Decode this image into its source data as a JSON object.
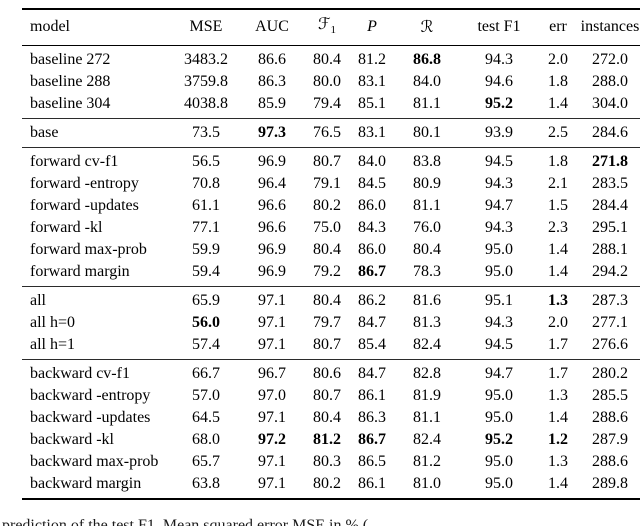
{
  "document": {
    "kind": "paper results table",
    "background_color": "#ffffff",
    "text_color": "#000000",
    "rule_color": "#000000"
  },
  "table": {
    "columns": [
      {
        "id": "model",
        "label": "model"
      },
      {
        "id": "mse",
        "label": "MSE"
      },
      {
        "id": "auc",
        "label": "AUC"
      },
      {
        "id": "f1",
        "label": "F1",
        "math": "cal",
        "base": "ℱ",
        "sub": "1"
      },
      {
        "id": "precision",
        "label": "P",
        "math": "it",
        "base": "P"
      },
      {
        "id": "recall",
        "label": "R",
        "math": "cal",
        "base": "ℛ"
      },
      {
        "id": "test-f1",
        "label": "test F1"
      },
      {
        "id": "err",
        "label": "err"
      },
      {
        "id": "instances",
        "label": "instances"
      }
    ],
    "groups": [
      {
        "name": "baselines",
        "rows": [
          {
            "model": "baseline 272",
            "values": [
              "3483.2",
              "86.6",
              "80.4",
              "81.2",
              "86.8",
              "94.3",
              "2.0",
              "272.0"
            ],
            "bold": [
              4
            ]
          },
          {
            "model": "baseline 288",
            "values": [
              "3759.8",
              "86.3",
              "80.0",
              "83.1",
              "84.0",
              "94.6",
              "1.8",
              "288.0"
            ],
            "bold": []
          },
          {
            "model": "baseline 304",
            "values": [
              "4038.8",
              "85.9",
              "79.4",
              "85.1",
              "81.1",
              "95.2",
              "1.4",
              "304.0"
            ],
            "bold": [
              5
            ]
          }
        ]
      },
      {
        "name": "base",
        "rows": [
          {
            "model": "base",
            "values": [
              "73.5",
              "97.3",
              "76.5",
              "83.1",
              "80.1",
              "93.9",
              "2.5",
              "284.6"
            ],
            "bold": [
              1
            ]
          }
        ]
      },
      {
        "name": "forward",
        "rows": [
          {
            "model": "forward cv-f1",
            "values": [
              "56.5",
              "96.9",
              "80.7",
              "84.0",
              "83.8",
              "94.5",
              "1.8",
              "271.8"
            ],
            "bold": [
              7
            ]
          },
          {
            "model": "forward -entropy",
            "values": [
              "70.8",
              "96.4",
              "79.1",
              "84.5",
              "80.9",
              "94.3",
              "2.1",
              "283.5"
            ],
            "bold": []
          },
          {
            "model": "forward -updates",
            "values": [
              "61.1",
              "96.6",
              "80.2",
              "86.0",
              "81.1",
              "94.7",
              "1.5",
              "284.4"
            ],
            "bold": []
          },
          {
            "model": "forward -kl",
            "values": [
              "77.1",
              "96.6",
              "75.0",
              "84.3",
              "76.0",
              "94.3",
              "2.3",
              "295.1"
            ],
            "bold": []
          },
          {
            "model": "forward max-prob",
            "values": [
              "59.9",
              "96.9",
              "80.4",
              "86.0",
              "80.4",
              "95.0",
              "1.4",
              "288.1"
            ],
            "bold": []
          },
          {
            "model": "forward margin",
            "values": [
              "59.4",
              "96.9",
              "79.2",
              "86.7",
              "78.3",
              "95.0",
              "1.4",
              "294.2"
            ],
            "bold": [
              3
            ]
          }
        ]
      },
      {
        "name": "all",
        "rows": [
          {
            "model": "all",
            "values": [
              "65.9",
              "97.1",
              "80.4",
              "86.2",
              "81.6",
              "95.1",
              "1.3",
              "287.3"
            ],
            "bold": [
              6
            ]
          },
          {
            "model": "all h=0",
            "values": [
              "56.0",
              "97.1",
              "79.7",
              "84.7",
              "81.3",
              "94.3",
              "2.0",
              "277.1"
            ],
            "bold": [
              0
            ]
          },
          {
            "model": "all h=1",
            "values": [
              "57.4",
              "97.1",
              "80.7",
              "85.4",
              "82.4",
              "94.5",
              "1.7",
              "276.6"
            ],
            "bold": []
          }
        ]
      },
      {
        "name": "backward",
        "rows": [
          {
            "model": "backward cv-f1",
            "values": [
              "66.7",
              "96.7",
              "80.6",
              "84.7",
              "82.8",
              "94.7",
              "1.7",
              "280.2"
            ],
            "bold": []
          },
          {
            "model": "backward -entropy",
            "values": [
              "57.0",
              "97.0",
              "80.7",
              "86.1",
              "81.9",
              "95.0",
              "1.3",
              "285.5"
            ],
            "bold": []
          },
          {
            "model": "backward -updates",
            "values": [
              "64.5",
              "97.1",
              "80.4",
              "86.3",
              "81.1",
              "95.0",
              "1.4",
              "288.6"
            ],
            "bold": []
          },
          {
            "model": "backward -kl",
            "values": [
              "68.0",
              "97.2",
              "81.2",
              "86.7",
              "82.4",
              "95.2",
              "1.2",
              "287.9"
            ],
            "bold": [
              1,
              2,
              3,
              5,
              6
            ]
          },
          {
            "model": "backward max-prob",
            "values": [
              "65.7",
              "97.1",
              "80.3",
              "86.5",
              "81.2",
              "95.0",
              "1.3",
              "288.6"
            ],
            "bold": []
          },
          {
            "model": "backward margin",
            "values": [
              "63.8",
              "97.1",
              "80.2",
              "86.1",
              "81.0",
              "95.0",
              "1.4",
              "289.8"
            ],
            "bold": []
          }
        ]
      }
    ]
  },
  "caption": {
    "fragment": "prediction of the test F1. Mean squared error MSE in % ("
  }
}
